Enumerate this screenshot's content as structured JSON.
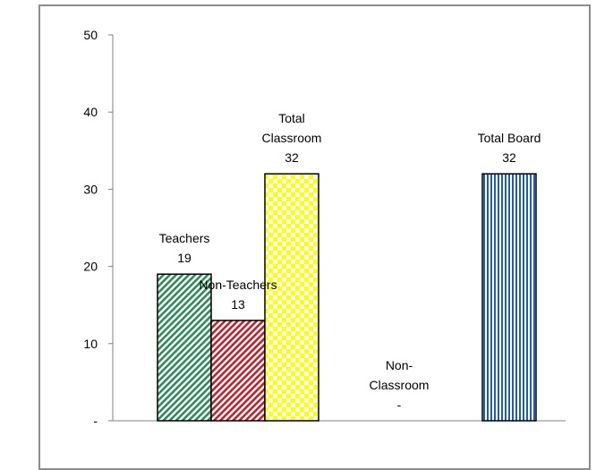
{
  "chart_data": {
    "type": "bar",
    "categories": [
      "Teachers",
      "Non-Teachers",
      "Total Classroom",
      "Non-Classroom",
      "Total Board"
    ],
    "values": [
      19,
      13,
      32,
      0,
      32
    ],
    "value_labels": [
      "19",
      "13",
      "32",
      "-",
      "32"
    ],
    "category_label_lines": [
      [
        "Teachers"
      ],
      [
        "Non-Teachers"
      ],
      [
        "Total",
        "Classroom"
      ],
      [
        "Non-",
        "Classroom"
      ],
      [
        "Total Board"
      ]
    ],
    "patterns": [
      "diagonal-green",
      "diagonal-red",
      "checker-yellow",
      "none",
      "vertical-blue"
    ],
    "colors": [
      "#2e8b57",
      "#c0202a",
      "#ffff00",
      "#ffffff",
      "#1f5fa8"
    ],
    "y_ticks": [
      "-",
      "10",
      "20",
      "30",
      "40",
      "50"
    ],
    "ylim": [
      0,
      50
    ],
    "grid": false,
    "legend": "none"
  }
}
